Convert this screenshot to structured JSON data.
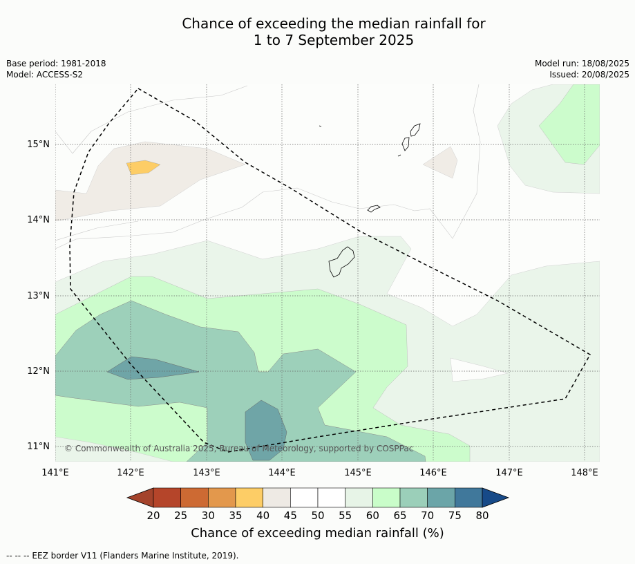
{
  "title": {
    "line1": "Chance of exceeding the median rainfall for",
    "line2": "1 to 7 September 2025"
  },
  "meta": {
    "base_period": "Base period: 1981-2018",
    "model": "Model: ACCESS-S2",
    "model_run": "Model run: 18/08/2025",
    "issued": "Issued: 20/08/2025"
  },
  "map": {
    "lon_labels": [
      "141°E",
      "142°E",
      "143°E",
      "144°E",
      "145°E",
      "146°E",
      "147°E",
      "148°E"
    ],
    "lat_labels": [
      "15°N",
      "14°N",
      "13°N",
      "12°N",
      "11°N"
    ],
    "copyright": "© Commonwealth of Australia 2025, Bureau of Meteorology, supported by COSPPac"
  },
  "colorbar": {
    "ticks": [
      "20",
      "25",
      "30",
      "35",
      "40",
      "45",
      "50",
      "55",
      "60",
      "65",
      "70",
      "75",
      "80"
    ],
    "colors": [
      "#b5452a",
      "#cd6a33",
      "#e3984c",
      "#fdcd66",
      "#eeeae4",
      "#ffffff",
      "#ffffff",
      "#e7f4e7",
      "#c9fdc9",
      "#9bcfb9",
      "#6ba5a8",
      "#40789b"
    ],
    "under_color": "#a4432b",
    "over_color": "#174a88",
    "label": "Chance of exceeding median rainfall (%)"
  },
  "footer": "--  --  -- EEZ border V11 (Flanders Marine Institute, 2019).",
  "colors": {
    "band_45_50": "#f0ece6",
    "band_35_40": "#fdcd66",
    "band_55_60": "#eaf5ea",
    "band_60_65": "#ccfccc",
    "band_65_70": "#9dd0ba",
    "band_70_75": "#6fa5a7"
  }
}
